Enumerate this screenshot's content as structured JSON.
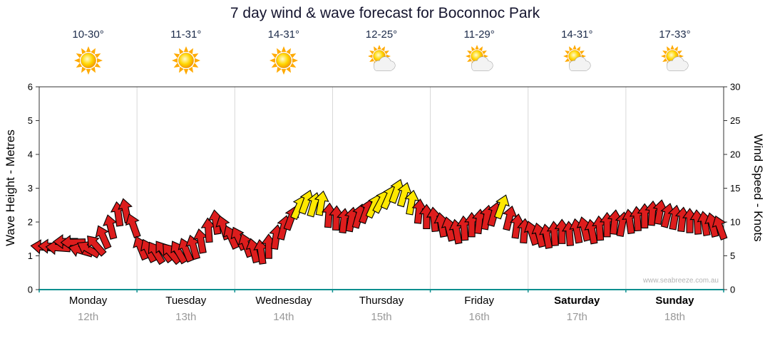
{
  "title": "7 day wind & wave forecast for Boconnoc Park",
  "watermark": "www.seabreeze.com.au",
  "axes": {
    "left_label": "Wave Height - Metres",
    "right_label": "Wind Speed - Knots",
    "left_ticks": [
      0,
      1,
      2,
      3,
      4,
      5,
      6
    ],
    "right_ticks": [
      0,
      5,
      10,
      15,
      20,
      25,
      30
    ]
  },
  "days": [
    {
      "name": "Monday",
      "date": "12th",
      "temp": "10-30°",
      "icon": "sunny",
      "bold": false
    },
    {
      "name": "Tuesday",
      "date": "13th",
      "temp": "11-31°",
      "icon": "sunny",
      "bold": false
    },
    {
      "name": "Wednesday",
      "date": "14th",
      "temp": "14-31°",
      "icon": "sunny",
      "bold": false
    },
    {
      "name": "Thursday",
      "date": "15th",
      "temp": "12-25°",
      "icon": "partly-cloudy",
      "bold": false
    },
    {
      "name": "Friday",
      "date": "16th",
      "temp": "11-29°",
      "icon": "partly-cloudy",
      "bold": false
    },
    {
      "name": "Saturday",
      "date": "17th",
      "temp": "14-31°",
      "icon": "partly-cloudy",
      "bold": true
    },
    {
      "name": "Sunday",
      "date": "18th",
      "temp": "17-33°",
      "icon": "partly-cloudy",
      "bold": true
    }
  ],
  "chart_data": {
    "type": "scatter",
    "subtype": "wind-direction-arrows",
    "categories": [
      "Monday 12th",
      "Tuesday 13th",
      "Wednesday 14th",
      "Thursday 15th",
      "Friday 16th",
      "Saturday 17th",
      "Sunday 18th"
    ],
    "points_per_day": 13,
    "wave_axis": {
      "label": "Wave Height - Metres",
      "ylim": [
        0,
        6
      ]
    },
    "wind_axis": {
      "label": "Wind Speed - Knots",
      "ylim": [
        0,
        30
      ]
    },
    "colors": {
      "red": "#dd1d1d",
      "yellow": "#ffe800",
      "yellow_threshold_kn": 12
    },
    "speeds_kn_by_day": [
      [
        6.3,
        6.4,
        6.2,
        7.1,
        7.0,
        5.8,
        6.0,
        6.6,
        7.8,
        9.3,
        11.2,
        11.7,
        9.5
      ],
      [
        6.2,
        5.8,
        5.5,
        5.7,
        5.4,
        5.6,
        5.9,
        6.3,
        7.2,
        8.8,
        10.0,
        9.2,
        7.8
      ],
      [
        7.6,
        6.6,
        5.8,
        5.6,
        6.4,
        7.8,
        9.2,
        10.6,
        12.2,
        13.0,
        12.6,
        12.8,
        11.0
      ],
      [
        10.6,
        10.2,
        10.4,
        10.9,
        11.6,
        12.4,
        13.1,
        13.7,
        14.6,
        14.1,
        12.9,
        11.6,
        10.8
      ],
      [
        10.4,
        9.6,
        9.0,
        8.6,
        9.1,
        9.6,
        10.1,
        10.7,
        11.2,
        12.3,
        10.6,
        9.4,
        8.7
      ],
      [
        8.4,
        8.1,
        7.9,
        8.3,
        8.6,
        8.3,
        8.7,
        9.0,
        8.6,
        9.1,
        9.6,
        10.0,
        9.7
      ],
      [
        10.1,
        10.5,
        10.9,
        11.3,
        11.5,
        11.0,
        10.7,
        10.4,
        10.2,
        10.0,
        9.8,
        9.6,
        9.2
      ]
    ],
    "directions_deg_by_day": [
      [
        186,
        182,
        184,
        180,
        179,
        196,
        210,
        228,
        246,
        256,
        262,
        258,
        250
      ],
      [
        248,
        244,
        238,
        234,
        230,
        240,
        248,
        254,
        260,
        266,
        262,
        252,
        246
      ],
      [
        244,
        250,
        256,
        262,
        270,
        278,
        284,
        290,
        294,
        290,
        286,
        280,
        274
      ],
      [
        272,
        276,
        280,
        286,
        290,
        294,
        298,
        294,
        290,
        286,
        280,
        276,
        270
      ],
      [
        264,
        260,
        256,
        260,
        266,
        270,
        276,
        280,
        286,
        290,
        284,
        278,
        274
      ],
      [
        252,
        256,
        260,
        266,
        270,
        266,
        260,
        256,
        260,
        266,
        270,
        276,
        280
      ],
      [
        262,
        266,
        270,
        274,
        280,
        284,
        280,
        276,
        270,
        266,
        260,
        256,
        250
      ]
    ]
  }
}
